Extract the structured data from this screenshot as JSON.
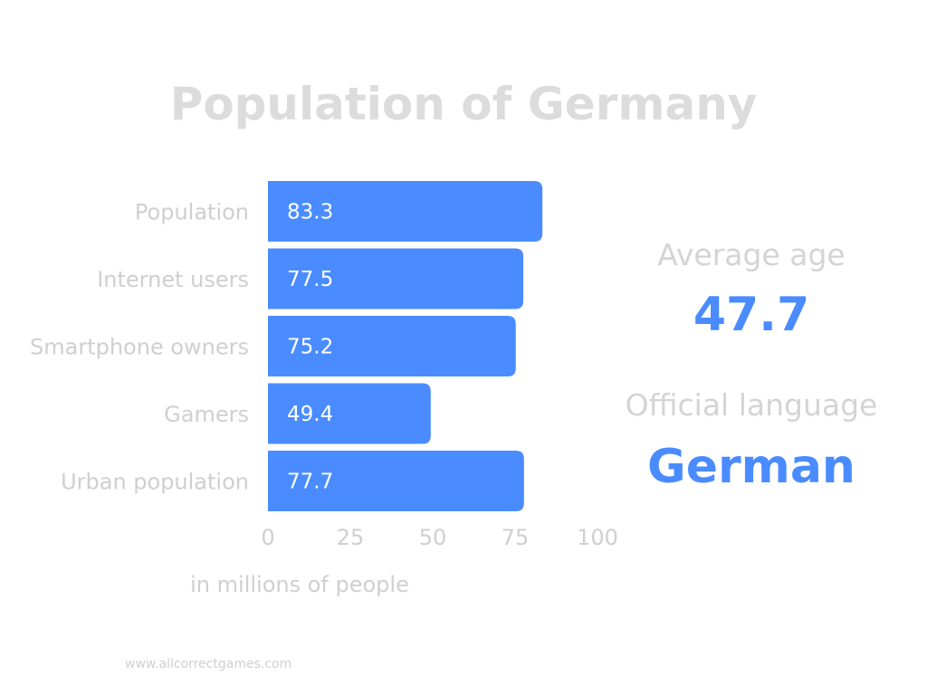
{
  "title": "Population of Germany",
  "chart_data": {
    "type": "bar",
    "orientation": "horizontal",
    "categories": [
      "Population",
      "Internet users",
      "Smartphone owners",
      "Gamers",
      "Urban population"
    ],
    "values": [
      83.3,
      77.5,
      75.2,
      49.4,
      77.7
    ],
    "xticks": [
      "0",
      "25",
      "50",
      "75",
      "100"
    ],
    "xlim": [
      0,
      100
    ],
    "xlabel": "in millions of people",
    "ylabel": "",
    "grid": false,
    "bar_color": "#4a8cff"
  },
  "stats": {
    "average_age": {
      "label": "Average age",
      "value": "47.7"
    },
    "official_language": {
      "label": "Official language",
      "value": "German"
    }
  },
  "accent_color": "#4a8cff",
  "muted_text_color": "#d4d4d4",
  "footer": "www.allcorrectgames.com"
}
